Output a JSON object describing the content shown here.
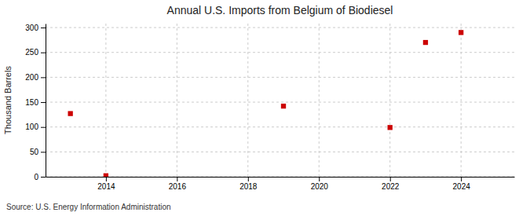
{
  "chart_data": {
    "type": "scatter",
    "title": "Annual U.S. Imports from Belgium of Biodiesel",
    "ylabel": "Thousand Barrels",
    "annotation": "Source: U.S. Energy Information Administration",
    "x": [
      2013,
      2014,
      2019,
      2022,
      2023,
      2024
    ],
    "values": [
      127,
      2,
      142,
      99,
      270,
      290
    ],
    "color": "#cc0000",
    "marker": "square",
    "xlim": [
      2012.3,
      2025.5
    ],
    "ylim": [
      0,
      308
    ],
    "xticks": [
      2014,
      2016,
      2018,
      2020,
      2022,
      2024
    ],
    "yticks": [
      0,
      50,
      100,
      150,
      200,
      250,
      300
    ],
    "grid": true
  }
}
